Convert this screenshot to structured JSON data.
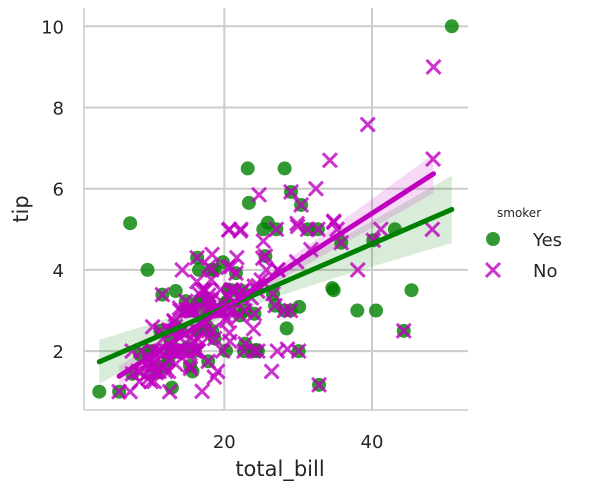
{
  "chart_data": {
    "type": "scatter",
    "xlabel": "total_bill",
    "ylabel": "tip",
    "xlim": [
      1.0,
      53.0
    ],
    "ylim": [
      0.55,
      10.45
    ],
    "x_ticks": [
      "20",
      "40"
    ],
    "y_ticks": [
      "2",
      "4",
      "6",
      "8",
      "10"
    ],
    "x_tick_values": [
      20,
      40
    ],
    "y_tick_values": [
      2,
      4,
      6,
      8,
      10
    ],
    "grid": true,
    "legend": {
      "title": "smoker",
      "placement": "right",
      "entries": [
        "Yes",
        "No"
      ]
    },
    "series": [
      {
        "name": "Yes",
        "marker": "circle",
        "color": "#008000",
        "points": [
          [
            3.07,
            1.0
          ],
          [
            5.75,
            1.0
          ],
          [
            7.25,
            5.15
          ],
          [
            10.59,
            1.61
          ],
          [
            10.77,
            1.47
          ],
          [
            11.35,
            2.5
          ],
          [
            12.43,
            1.8
          ],
          [
            12.74,
            2.01
          ],
          [
            13.0,
            2.0
          ],
          [
            13.42,
            3.48
          ],
          [
            15.36,
            1.64
          ],
          [
            15.69,
            1.5
          ],
          [
            16.0,
            2.0
          ],
          [
            16.27,
            2.5
          ],
          [
            16.4,
            2.5
          ],
          [
            16.58,
            4.0
          ],
          [
            17.46,
            2.54
          ],
          [
            17.51,
            3.0
          ],
          [
            18.28,
            4.0
          ],
          [
            18.29,
            3.0
          ],
          [
            18.35,
            2.5
          ],
          [
            19.81,
            4.19
          ],
          [
            20.23,
            2.01
          ],
          [
            20.29,
            3.21
          ],
          [
            22.12,
            2.88
          ],
          [
            22.42,
            3.48
          ],
          [
            22.82,
            2.18
          ],
          [
            23.33,
            5.65
          ],
          [
            24.55,
            2.0
          ],
          [
            25.56,
            4.34
          ],
          [
            26.59,
            3.41
          ],
          [
            27.05,
            5.0
          ],
          [
            28.15,
            3.0
          ],
          [
            28.17,
            6.5
          ],
          [
            30.06,
            2.0
          ],
          [
            30.4,
            5.6
          ],
          [
            32.83,
            1.17
          ],
          [
            34.63,
            3.55
          ],
          [
            34.81,
            3.5
          ],
          [
            38.01,
            3.0
          ],
          [
            40.17,
            4.73
          ],
          [
            40.55,
            3.0
          ],
          [
            45.35,
            3.5
          ],
          [
            50.81,
            10.0
          ],
          [
            9.6,
            4.0
          ],
          [
            11.87,
            1.63
          ],
          [
            13.39,
            2.61
          ],
          [
            14.07,
            2.5
          ],
          [
            15.01,
            2.09
          ],
          [
            15.38,
            3.0
          ],
          [
            16.76,
            3.24
          ],
          [
            17.78,
            3.27
          ],
          [
            19.44,
            3.0
          ],
          [
            20.49,
            3.51
          ],
          [
            22.76,
            3.0
          ],
          [
            24.01,
            2.0
          ],
          [
            24.08,
            2.92
          ],
          [
            25.89,
            5.16
          ],
          [
            28.44,
            2.56
          ],
          [
            29.03,
            5.92
          ],
          [
            32.68,
            5.0
          ],
          [
            35.83,
            4.67
          ],
          [
            43.11,
            5.0
          ],
          [
            44.3,
            2.5
          ],
          [
            12.9,
            1.1
          ],
          [
            8.58,
            1.92
          ],
          [
            18.69,
            2.31
          ],
          [
            13.13,
            2.0
          ],
          [
            17.29,
            2.71
          ],
          [
            17.82,
            1.75
          ],
          [
            26.88,
            3.12
          ],
          [
            14.78,
            3.23
          ],
          [
            23.17,
            6.5
          ],
          [
            21.01,
            3.5
          ],
          [
            12.76,
            2.23
          ],
          [
            30.14,
            3.09
          ],
          [
            16.32,
            4.3
          ],
          [
            22.67,
            2.0
          ],
          [
            16.47,
            3.23
          ],
          [
            14.83,
            3.02
          ],
          [
            9.68,
            2.0
          ],
          [
            15.53,
            3.0
          ],
          [
            10.33,
            2.0
          ],
          [
            7.56,
            1.44
          ],
          [
            18.71,
            4.0
          ],
          [
            21.58,
            3.92
          ],
          [
            31.27,
            5.0
          ],
          [
            28.97,
            3.0
          ],
          [
            25.28,
            5.0
          ],
          [
            24.27,
            2.03
          ],
          [
            11.61,
            3.39
          ],
          [
            15.06,
            3.0
          ],
          [
            20.08,
            3.15
          ]
        ]
      },
      {
        "name": "No",
        "marker": "x",
        "color": "#bf00bf",
        "points": [
          [
            16.99,
            1.01
          ],
          [
            10.34,
            1.66
          ],
          [
            21.01,
            3.5
          ],
          [
            23.68,
            3.31
          ],
          [
            24.59,
            3.61
          ],
          [
            25.29,
            4.71
          ],
          [
            8.77,
            2.0
          ],
          [
            26.88,
            3.12
          ],
          [
            15.04,
            1.96
          ],
          [
            14.78,
            3.23
          ],
          [
            10.27,
            1.71
          ],
          [
            35.26,
            5.0
          ],
          [
            15.42,
            1.57
          ],
          [
            18.43,
            3.0
          ],
          [
            14.83,
            3.02
          ],
          [
            21.58,
            3.92
          ],
          [
            10.33,
            1.67
          ],
          [
            16.29,
            3.71
          ],
          [
            16.97,
            3.5
          ],
          [
            20.65,
            3.35
          ],
          [
            17.92,
            4.08
          ],
          [
            20.29,
            2.75
          ],
          [
            15.77,
            2.23
          ],
          [
            39.42,
            7.58
          ],
          [
            19.82,
            3.18
          ],
          [
            17.81,
            2.34
          ],
          [
            13.37,
            2.0
          ],
          [
            12.69,
            2.0
          ],
          [
            21.7,
            4.3
          ],
          [
            19.65,
            3.0
          ],
          [
            9.55,
            1.45
          ],
          [
            18.35,
            2.5
          ],
          [
            15.06,
            3.0
          ],
          [
            20.69,
            2.45
          ],
          [
            17.78,
            3.27
          ],
          [
            24.06,
            3.6
          ],
          [
            16.31,
            2.0
          ],
          [
            16.93,
            3.07
          ],
          [
            18.69,
            2.31
          ],
          [
            31.27,
            5.0
          ],
          [
            16.04,
            2.24
          ],
          [
            17.46,
            2.54
          ],
          [
            13.94,
            3.06
          ],
          [
            9.68,
            1.32
          ],
          [
            30.4,
            5.6
          ],
          [
            18.29,
            3.0
          ],
          [
            22.23,
            5.0
          ],
          [
            32.4,
            6.0
          ],
          [
            28.55,
            2.05
          ],
          [
            18.04,
            3.0
          ],
          [
            12.54,
            2.5
          ],
          [
            10.29,
            2.6
          ],
          [
            34.81,
            5.2
          ],
          [
            9.94,
            1.56
          ],
          [
            25.56,
            4.34
          ],
          [
            19.49,
            3.51
          ],
          [
            26.41,
            1.5
          ],
          [
            48.27,
            6.73
          ],
          [
            14.73,
            2.2
          ],
          [
            10.51,
            1.25
          ],
          [
            17.92,
            3.08
          ],
          [
            27.2,
            4.0
          ],
          [
            22.76,
            3.0
          ],
          [
            17.29,
            2.71
          ],
          [
            19.44,
            3.0
          ],
          [
            16.66,
            3.4
          ],
          [
            10.07,
            1.83
          ],
          [
            32.68,
            5.0
          ],
          [
            15.98,
            2.03
          ],
          [
            34.83,
            5.17
          ],
          [
            13.03,
            2.0
          ],
          [
            18.28,
            4.0
          ],
          [
            24.71,
            5.85
          ],
          [
            21.16,
            3.0
          ],
          [
            28.97,
            3.0
          ],
          [
            22.49,
            3.5
          ],
          [
            5.75,
            1.0
          ],
          [
            16.32,
            4.3
          ],
          [
            22.75,
            3.25
          ],
          [
            40.17,
            4.73
          ],
          [
            27.28,
            4.0
          ],
          [
            12.03,
            1.5
          ],
          [
            21.01,
            3.0
          ],
          [
            12.46,
            1.5
          ],
          [
            11.35,
            2.5
          ],
          [
            15.38,
            3.0
          ],
          [
            44.3,
            2.5
          ],
          [
            22.42,
            3.48
          ],
          [
            20.92,
            4.08
          ],
          [
            15.36,
            1.64
          ],
          [
            20.49,
            4.06
          ],
          [
            25.21,
            4.29
          ],
          [
            18.24,
            3.76
          ],
          [
            14.31,
            4.0
          ],
          [
            14.0,
            3.0
          ],
          [
            7.25,
            1.0
          ],
          [
            38.07,
            4.0
          ],
          [
            23.95,
            2.55
          ],
          [
            25.71,
            4.0
          ],
          [
            17.31,
            3.5
          ],
          [
            29.93,
            5.07
          ],
          [
            10.65,
            1.5
          ],
          [
            12.43,
            1.8
          ],
          [
            24.08,
            2.92
          ],
          [
            11.69,
            2.31
          ],
          [
            13.42,
            1.68
          ],
          [
            14.26,
            2.5
          ],
          [
            15.95,
            2.0
          ],
          [
            12.48,
            2.52
          ],
          [
            29.8,
            4.2
          ],
          [
            8.52,
            1.48
          ],
          [
            14.52,
            2.0
          ],
          [
            11.38,
            2.0
          ],
          [
            22.82,
            2.18
          ],
          [
            19.08,
            1.5
          ],
          [
            20.27,
            2.83
          ],
          [
            11.17,
            1.5
          ],
          [
            12.26,
            2.0
          ],
          [
            18.26,
            3.25
          ],
          [
            8.51,
            1.25
          ],
          [
            10.33,
            2.0
          ],
          [
            14.15,
            2.0
          ],
          [
            13.16,
            2.75
          ],
          [
            17.47,
            3.5
          ],
          [
            34.3,
            6.7
          ],
          [
            41.19,
            5.0
          ],
          [
            27.05,
            5.0
          ],
          [
            16.43,
            2.3
          ],
          [
            8.35,
            1.5
          ],
          [
            18.64,
            1.36
          ],
          [
            11.87,
            1.63
          ],
          [
            9.78,
            1.73
          ],
          [
            7.51,
            2.0
          ],
          [
            14.07,
            2.5
          ],
          [
            13.13,
            2.0
          ],
          [
            17.26,
            2.74
          ],
          [
            24.55,
            2.0
          ],
          [
            19.77,
            2.0
          ],
          [
            29.85,
            5.14
          ],
          [
            48.17,
            5.0
          ],
          [
            25.0,
            3.75
          ],
          [
            13.39,
            2.61
          ],
          [
            16.49,
            2.0
          ],
          [
            21.5,
            3.5
          ],
          [
            12.66,
            2.5
          ],
          [
            16.21,
            2.0
          ],
          [
            13.81,
            2.0
          ],
          [
            24.52,
            3.48
          ],
          [
            20.76,
            2.24
          ],
          [
            31.71,
            4.5
          ],
          [
            20.69,
            5.0
          ],
          [
            7.56,
            1.44
          ],
          [
            48.33,
            9.0
          ],
          [
            20.45,
            3.0
          ],
          [
            13.28,
            2.72
          ],
          [
            22.12,
            2.88
          ],
          [
            24.01,
            2.0
          ],
          [
            15.69,
            3.0
          ],
          [
            11.61,
            3.39
          ],
          [
            10.77,
            1.47
          ],
          [
            15.53,
            3.0
          ],
          [
            10.07,
            1.25
          ],
          [
            12.6,
            1.0
          ],
          [
            32.83,
            1.17
          ],
          [
            35.83,
            4.67
          ],
          [
            29.03,
            5.92
          ],
          [
            27.18,
            2.0
          ],
          [
            22.67,
            2.0
          ],
          [
            17.82,
            1.75
          ],
          [
            18.78,
            3.0
          ],
          [
            22.17,
            4.96
          ],
          [
            20.6,
            4.98
          ],
          [
            26.59,
            3.41
          ],
          [
            17.89,
            3.38
          ],
          [
            11.02,
            1.98
          ],
          [
            15.98,
            3.0
          ],
          [
            16.27,
            2.5
          ],
          [
            18.35,
            4.38
          ],
          [
            30.06,
            2.0
          ],
          [
            20.9,
            3.5
          ],
          [
            13.27,
            2.5
          ],
          [
            28.15,
            3.0
          ]
        ]
      }
    ]
  }
}
